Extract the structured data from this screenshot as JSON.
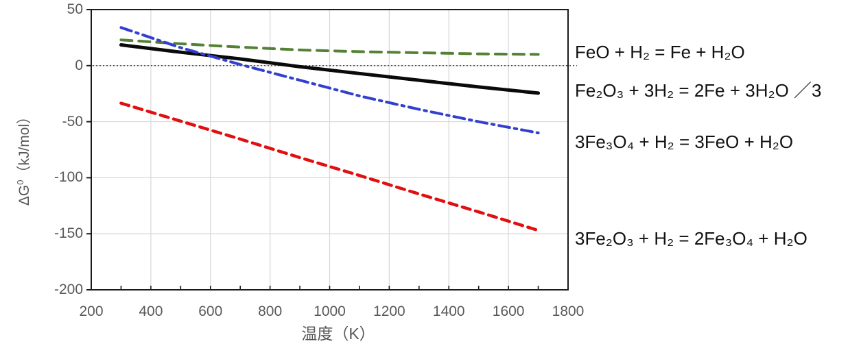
{
  "chart_data": {
    "type": "line",
    "title": "",
    "xlabel": "温度（K）",
    "ylabel": "ΔG0（kJ/mol）",
    "ylabel_parts": {
      "base": "ΔG",
      "sup": "0",
      "unit": "（kJ/mol）"
    },
    "xlim": [
      200,
      1800
    ],
    "ylim": [
      -200,
      50
    ],
    "x_ticks": [
      200,
      400,
      600,
      800,
      1000,
      1200,
      1400,
      1600,
      1800
    ],
    "x_minor_tick_step": 100,
    "y_ticks": [
      50,
      0,
      -50,
      -100,
      -150,
      -200
    ],
    "grid": true,
    "legend_position": "right-outside",
    "zero_line": {
      "value": 0,
      "style": "dotted",
      "color": "#4d4d4d"
    },
    "colors": {
      "grid": "#d9d9d9",
      "axis": "#1a1a1a",
      "tick_text": "#595959",
      "label_text": "#111111"
    },
    "series": [
      {
        "id": "feo-h2",
        "label": "FeO + H₂ = Fe + H₂O",
        "color": "#548235",
        "style": "dashed",
        "dash": "16 10",
        "width": 4,
        "x": [
          300,
          500,
          700,
          900,
          1100,
          1300,
          1500,
          1700
        ],
        "y": [
          23,
          19.5,
          16.5,
          14,
          12.5,
          11.5,
          10.5,
          10
        ]
      },
      {
        "id": "fe2o3-3h2",
        "label": "Fe₂O₃ + 3H₂ = 2Fe + 3H₂O ／3",
        "color": "#0a0a0a",
        "style": "solid",
        "dash": "",
        "width": 5,
        "x": [
          300,
          500,
          700,
          900,
          1100,
          1300,
          1500,
          1700
        ],
        "y": [
          18.5,
          12,
          6,
          -1,
          -7,
          -13,
          -19,
          -24.5
        ]
      },
      {
        "id": "fe3o4-h2",
        "label": "3Fe₃O₄ + H₂ = 3FeO + H₂O",
        "color": "#3340cf",
        "style": "dashdot",
        "dash": "16 7 3.5 7",
        "width": 4,
        "x": [
          300,
          500,
          700,
          900,
          1100,
          1300,
          1500,
          1700
        ],
        "y": [
          34,
          16,
          1,
          -13,
          -27,
          -39,
          -50,
          -60
        ]
      },
      {
        "id": "3fe2o3-h2",
        "label": "3Fe₂O₃ + H₂ = 2Fe₃O₄ + H₂O",
        "color": "#e01010",
        "style": "dashed",
        "dash": "12 8",
        "width": 4.5,
        "x": [
          300,
          500,
          700,
          900,
          1100,
          1300,
          1500,
          1700
        ],
        "y": [
          -33.5,
          -49.5,
          -65.5,
          -82,
          -98,
          -114.5,
          -130.5,
          -147
        ]
      }
    ]
  }
}
